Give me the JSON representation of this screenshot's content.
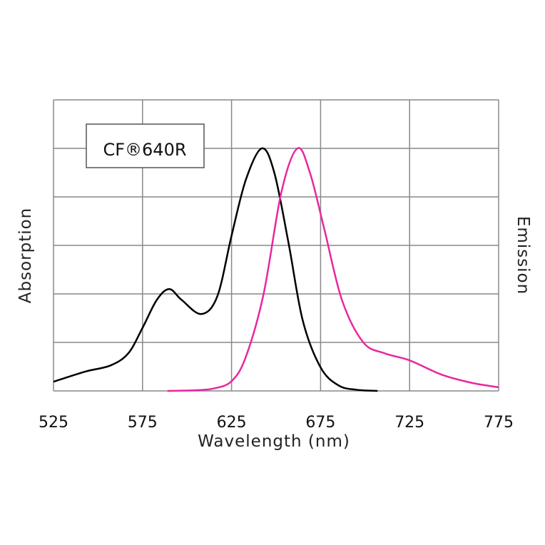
{
  "chart_data": {
    "type": "line",
    "title": "",
    "legend_text": "CF®640R",
    "legend_placement": "top-left",
    "xlabel": "Wavelength (nm)",
    "ylabel_left": "Absorption",
    "ylabel_right": "Emission",
    "xlim": [
      525,
      775
    ],
    "ylim": [
      0,
      1.2
    ],
    "x_ticks": [
      525,
      575,
      625,
      675,
      725,
      775
    ],
    "y_gridlines": [
      0,
      0.2,
      0.4,
      0.6,
      0.8,
      1.0,
      1.2
    ],
    "grid": true,
    "series": [
      {
        "color": "#000000",
        "points": [
          [
            525,
            0.038
          ],
          [
            543,
            0.08
          ],
          [
            557,
            0.105
          ],
          [
            567,
            0.155
          ],
          [
            575,
            0.26
          ],
          [
            583,
            0.375
          ],
          [
            590,
            0.42
          ],
          [
            597,
            0.375
          ],
          [
            608,
            0.317
          ],
          [
            617,
            0.39
          ],
          [
            625,
            0.64
          ],
          [
            633,
            0.87
          ],
          [
            642,
            1.0
          ],
          [
            649,
            0.9
          ],
          [
            657,
            0.61
          ],
          [
            665,
            0.29
          ],
          [
            675,
            0.097
          ],
          [
            685,
            0.023
          ],
          [
            695,
            0.005
          ],
          [
            707,
            0.0
          ]
        ]
      },
      {
        "color": "#e8279e",
        "points": [
          [
            589,
            0.0
          ],
          [
            605,
            0.003
          ],
          [
            615,
            0.01
          ],
          [
            625,
            0.04
          ],
          [
            633,
            0.14
          ],
          [
            643,
            0.4
          ],
          [
            653,
            0.82
          ],
          [
            662,
            1.0
          ],
          [
            669,
            0.9
          ],
          [
            677,
            0.67
          ],
          [
            687,
            0.375
          ],
          [
            699,
            0.2
          ],
          [
            711,
            0.155
          ],
          [
            725,
            0.126
          ],
          [
            743,
            0.067
          ],
          [
            760,
            0.033
          ],
          [
            775,
            0.015
          ]
        ]
      }
    ]
  }
}
